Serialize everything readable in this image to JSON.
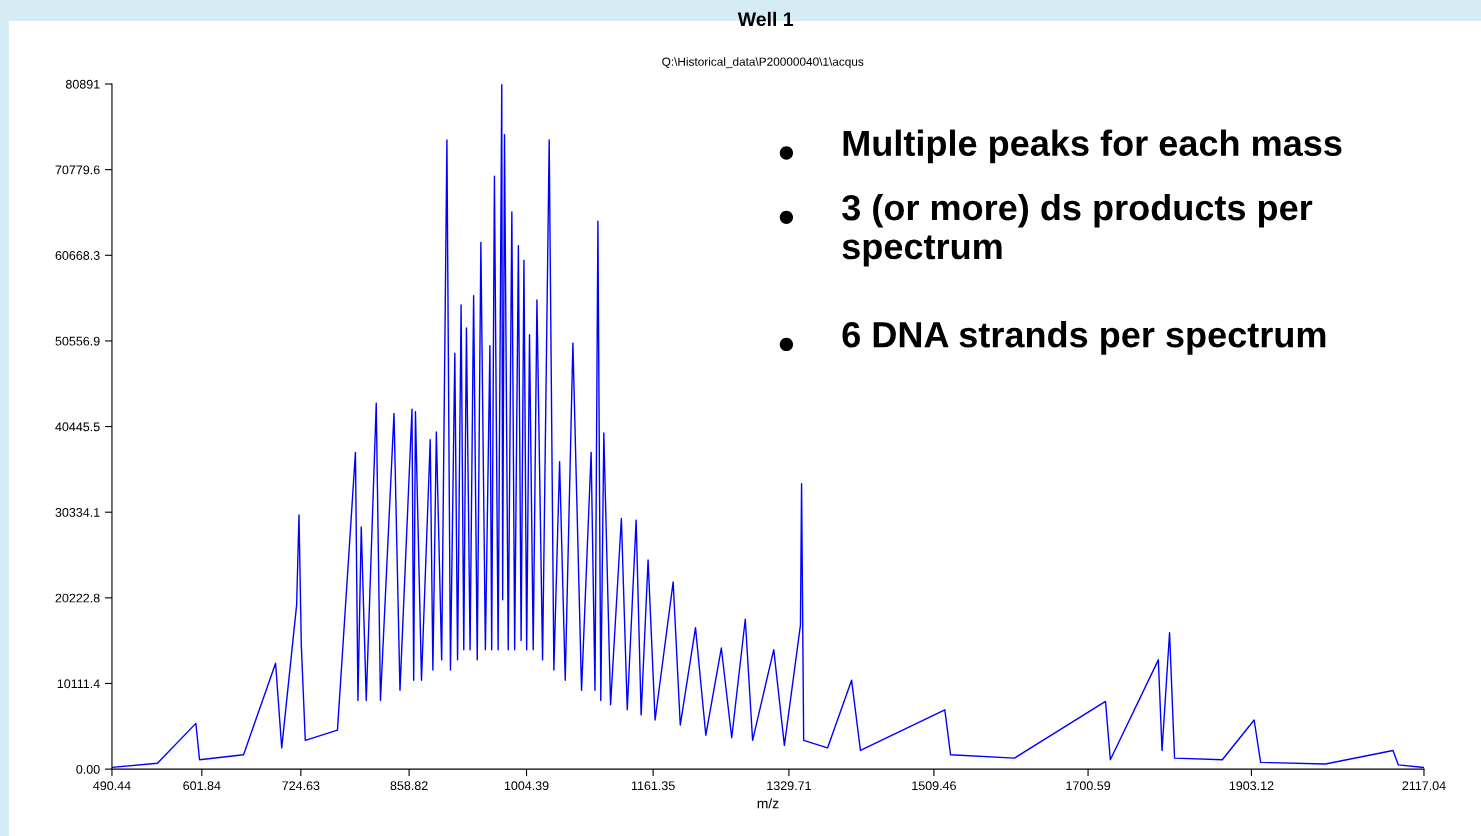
{
  "chart_data": {
    "type": "line",
    "title": "Well 1",
    "subtitle": "Q:\\Historical_data\\P20000040\\1\\acqus",
    "xlabel": "m/z",
    "annotations": [
      "Multiple peaks for each mass",
      "3 (or more) ds products per\nspectrum",
      "6 DNA strands per spectrum"
    ],
    "x": [
      490.44,
      546.8,
      594.5,
      599.0,
      653.6,
      693.3,
      700.9,
      719.4,
      722.3,
      725.2,
      730.1,
      770.0,
      792.3,
      795.4,
      799.5,
      805.7,
      818.1,
      823.3,
      840.1,
      847.5,
      862.4,
      864.5,
      866.7,
      874.2,
      885.0,
      888.3,
      892.6,
      899.2,
      905.7,
      910.1,
      915.5,
      918.9,
      923.3,
      926.6,
      929.9,
      934.4,
      938.8,
      943.3,
      947.8,
      953.4,
      959.0,
      961.2,
      964.6,
      969.2,
      973.7,
      974.8,
      977.1,
      981.7,
      986.2,
      989.7,
      994.3,
      997.7,
      1001.2,
      1004.6,
      1008.1,
      1012.7,
      1017.3,
      1024.3,
      1032.5,
      1038.3,
      1045.4,
      1052.4,
      1061.9,
      1072.6,
      1084.5,
      1089.3,
      1092.9,
      1096.5,
      1100.2,
      1108.6,
      1122.0,
      1129.3,
      1140.3,
      1146.5,
      1155.1,
      1163.8,
      1186.2,
      1195.0,
      1213.9,
      1226.7,
      1245.9,
      1258.8,
      1275.6,
      1284.7,
      1310.9,
      1324.1,
      1344.0,
      1345.4,
      1348.0,
      1377.6,
      1407.4,
      1418.4,
      1523.0,
      1530.1,
      1609.4,
      1722.2,
      1728.2,
      1787.7,
      1792.3,
      1801.6,
      1807.8,
      1867.0,
      1906.5,
      1914.5,
      1994.9,
      2078.6,
      2085.2,
      2116.9
    ],
    "series": [
      {
        "color": "#0000ff",
        "values": [
          200,
          700,
          5400,
          1100,
          1700,
          12500,
          2500,
          19400,
          30000,
          14600,
          3400,
          4600,
          37400,
          8100,
          28600,
          8100,
          43200,
          8100,
          42000,
          9300,
          42500,
          10500,
          42200,
          10500,
          38900,
          11700,
          39800,
          12900,
          74300,
          11700,
          49100,
          12900,
          54800,
          14100,
          52100,
          14100,
          55900,
          12900,
          62200,
          14100,
          50000,
          14100,
          70000,
          14100,
          80800,
          20000,
          74900,
          14100,
          65800,
          14100,
          61800,
          15200,
          60100,
          14100,
          51300,
          14100,
          55400,
          12900,
          74300,
          11700,
          36300,
          10500,
          50300,
          9300,
          37400,
          9300,
          64700,
          8100,
          39700,
          7600,
          29600,
          7000,
          29400,
          6400,
          24700,
          5800,
          22100,
          5200,
          16700,
          4000,
          14300,
          3700,
          17700,
          3400,
          14100,
          2800,
          17000,
          33700,
          3400,
          2500,
          10500,
          2200,
          7000,
          1700,
          1300,
          8000,
          1100,
          12900,
          2200,
          16100,
          1300,
          1100,
          5800,
          800,
          600,
          2200,
          500,
          200
        ]
      }
    ],
    "xlim": [
      490.44,
      2117.04
    ],
    "xticks": [
      490.44,
      601.84,
      724.63,
      858.82,
      1004.39,
      1161.35,
      1329.71,
      1509.46,
      1700.59,
      1903.12,
      2117.04
    ],
    "ylim": [
      0,
      80891
    ],
    "yticks": [
      {
        "value": 0,
        "label": "0.00"
      },
      10111.4,
      20222.8,
      30334.1,
      40445.5,
      50556.9,
      60668.3,
      70779.6,
      80891
    ],
    "grid": false,
    "legend": false,
    "marker": "none",
    "line_style": "solid"
  }
}
